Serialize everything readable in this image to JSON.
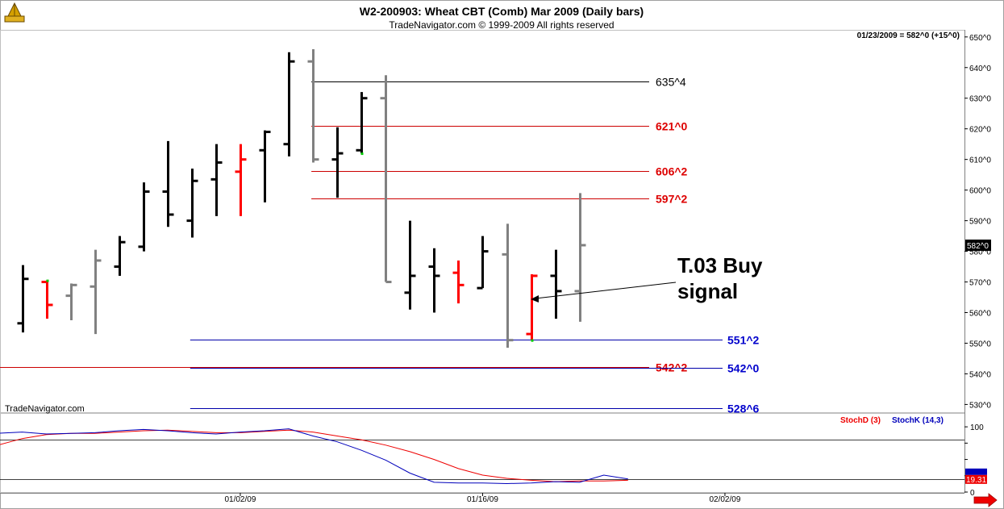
{
  "header": {
    "title": "W2-200903:  Wheat CBT (Comb) Mar 2009  (Daily bars)",
    "copyright": "TradeNavigator.com © 1999-2009 All rights reserved",
    "readout": "01/23/2009 = 582^0 (+15^0)",
    "watermark": "TradeNavigator.com"
  },
  "colors": {
    "up": "#000000",
    "down": "#ff0000",
    "neutral": "#808080",
    "green": "#00cc00",
    "blue": "#0000aa",
    "red_line": "#cc0000",
    "stoch_d": "#ee0000",
    "stoch_k": "#0000bb"
  },
  "annotation": {
    "line1": "T.03 Buy",
    "line2": "signal"
  },
  "chart_data": [
    {
      "type": "ohlc",
      "ylim": [
        528,
        651
      ],
      "y_ticks": [
        530,
        540,
        550,
        560,
        570,
        580,
        590,
        600,
        610,
        620,
        630,
        640,
        650
      ],
      "y_tick_labels": [
        "530^0",
        "540^0",
        "550^0",
        "560^0",
        "570^0",
        "580^0",
        "590^0",
        "600^0",
        "610^0",
        "620^0",
        "630^0",
        "640^0",
        "650^0"
      ],
      "last_price_label": "582^0",
      "bars": [
        {
          "i": 0,
          "o": 556.5,
          "h": 575.5,
          "l": 553.5,
          "c": 571,
          "color": "up"
        },
        {
          "i": 1,
          "o": 570,
          "h": 570.5,
          "l": 558,
          "c": 562.5,
          "color": "down",
          "mark": "green"
        },
        {
          "i": 2,
          "o": 565.5,
          "h": 569.5,
          "l": 557.5,
          "c": 569,
          "color": "neutral"
        },
        {
          "i": 3,
          "o": 568.5,
          "h": 580.5,
          "l": 553,
          "c": 577,
          "color": "neutral"
        },
        {
          "i": 4,
          "o": 575,
          "h": 585,
          "l": 572,
          "c": 583,
          "color": "up"
        },
        {
          "i": 5,
          "o": 581.5,
          "h": 602.5,
          "l": 580,
          "c": 599.5,
          "color": "up"
        },
        {
          "i": 6,
          "o": 599.5,
          "h": 616,
          "l": 588,
          "c": 592,
          "color": "up"
        },
        {
          "i": 7,
          "o": 590,
          "h": 607,
          "l": 584.5,
          "c": 603,
          "color": "up"
        },
        {
          "i": 8,
          "o": 603.5,
          "h": 615,
          "l": 591.5,
          "c": 609,
          "color": "up"
        },
        {
          "i": 9,
          "o": 606,
          "h": 615,
          "l": 591.5,
          "c": 610,
          "color": "down"
        },
        {
          "i": 10,
          "o": 613,
          "h": 619.5,
          "l": 596,
          "c": 619,
          "color": "up"
        },
        {
          "i": 11,
          "o": 615,
          "h": 645,
          "l": 611,
          "c": 642,
          "color": "up"
        },
        {
          "i": 12,
          "o": 642,
          "h": 646,
          "l": 609,
          "c": 610,
          "color": "neutral"
        },
        {
          "i": 13,
          "o": 610,
          "h": 620.5,
          "l": 597.5,
          "c": 612,
          "color": "up"
        },
        {
          "i": 14,
          "o": 613,
          "h": 632,
          "l": 612,
          "c": 630,
          "color": "up",
          "mark": "green"
        },
        {
          "i": 15,
          "o": 630,
          "h": 637.5,
          "l": 570,
          "c": 570,
          "color": "neutral"
        },
        {
          "i": 16,
          "o": 566.5,
          "h": 590,
          "l": 561,
          "c": 572,
          "color": "up"
        },
        {
          "i": 17,
          "o": 575,
          "h": 581,
          "l": 560,
          "c": 572,
          "color": "up"
        },
        {
          "i": 18,
          "o": 573,
          "h": 577,
          "l": 563,
          "c": 569,
          "color": "down"
        },
        {
          "i": 19,
          "o": 568,
          "h": 585,
          "l": 568,
          "c": 580,
          "color": "up"
        },
        {
          "i": 20,
          "o": 579,
          "h": 589,
          "l": 548.5,
          "c": 551,
          "color": "neutral"
        },
        {
          "i": 21,
          "o": 553,
          "h": 572.5,
          "l": 551,
          "c": 572,
          "color": "down",
          "mark": "green"
        },
        {
          "i": 22,
          "o": 572,
          "h": 580.5,
          "l": 558,
          "c": 567,
          "color": "up"
        },
        {
          "i": 23,
          "o": 567,
          "h": 599,
          "l": 557,
          "c": 582,
          "color": "neutral"
        }
      ],
      "levels": [
        {
          "value": 635.5,
          "label": "635^4",
          "color": "black",
          "from_bar": 12
        },
        {
          "value": 621,
          "label": "621^0",
          "color": "red",
          "from_bar": 12
        },
        {
          "value": 606.25,
          "label": "606^2",
          "color": "red",
          "from_bar": 12
        },
        {
          "value": 597.25,
          "label": "597^2",
          "color": "red",
          "from_bar": 12
        },
        {
          "value": 551.25,
          "label": "551^2",
          "color": "blue",
          "from_bar": 7
        },
        {
          "value": 542.25,
          "label": "542^2",
          "color": "red",
          "from_bar": -2
        },
        {
          "value": 542,
          "label": "542^0",
          "color": "blue",
          "from_bar": 7
        },
        {
          "value": 528.75,
          "label": "528^6",
          "color": "blue",
          "from_bar": 7
        }
      ]
    },
    {
      "type": "line",
      "ylim": [
        0,
        115
      ],
      "y_ticks": [
        0,
        25,
        50,
        75,
        100
      ],
      "y_tick_labels": [
        "0",
        "",
        "",
        "",
        "100"
      ],
      "reference_lines": [
        80,
        20
      ],
      "legend": [
        "StochD (3)",
        "StochK (14,3)"
      ],
      "last_value_label": "19.31",
      "series": [
        {
          "name": "StochD (3)",
          "values": [
            72,
            82,
            88,
            90,
            90,
            92,
            94,
            95,
            93,
            91,
            91,
            93,
            95,
            92,
            86,
            80,
            72,
            62,
            50,
            36,
            26,
            21,
            18,
            16,
            17,
            17,
            18
          ]
        },
        {
          "name": "StochK (14,3)",
          "values": [
            90,
            92,
            89,
            90,
            91,
            94,
            96,
            94,
            91,
            89,
            92,
            94,
            97,
            86,
            77,
            64,
            49,
            29,
            15,
            14,
            14,
            13,
            14,
            16,
            15,
            26,
            20
          ]
        }
      ],
      "series_x_start_bar": -1
    },
    {
      "type": "axis",
      "x_tick_labels": [
        "01/02/09",
        "01/16/09",
        "02/02/09"
      ],
      "x_tick_bars": [
        9,
        19,
        29
      ]
    }
  ]
}
